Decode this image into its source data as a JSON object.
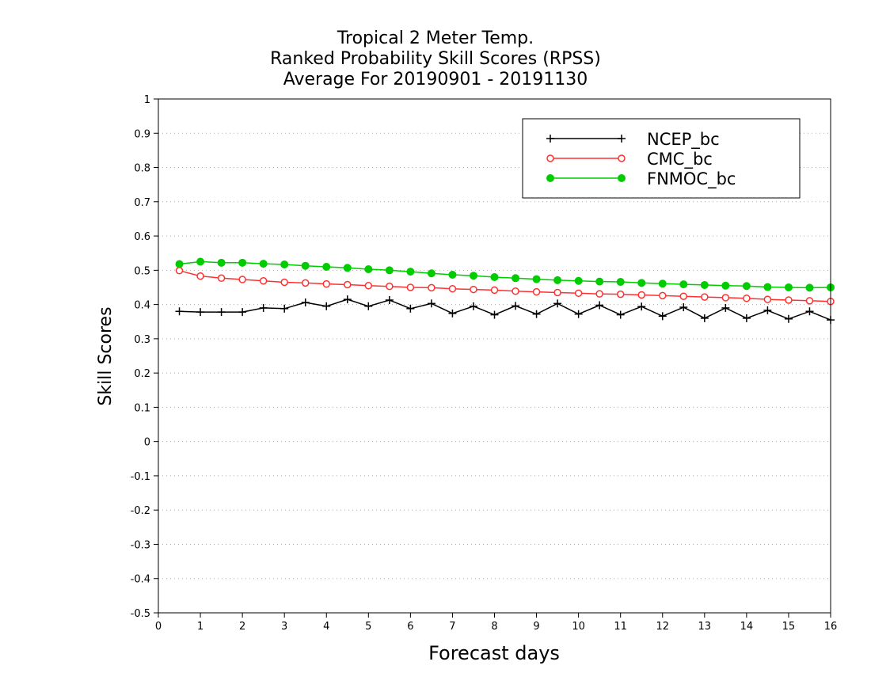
{
  "chart_data": {
    "type": "line",
    "title": [
      "Tropical 2 Meter Temp.",
      "Ranked Probability Skill Scores (RPSS)",
      "Average For 20190901 - 20191130"
    ],
    "xlabel": "Forecast days",
    "ylabel": "Skill Scores",
    "xlim": [
      0,
      16
    ],
    "ylim": [
      -0.5,
      1
    ],
    "xticks": [
      "0",
      "1",
      "2",
      "3",
      "4",
      "5",
      "6",
      "7",
      "8",
      "9",
      "10",
      "11",
      "12",
      "13",
      "14",
      "15",
      "16"
    ],
    "yticks": [
      "-0.5",
      "-0.4",
      "-0.3",
      "-0.2",
      "-0.1",
      "0",
      "0.1",
      "0.2",
      "0.3",
      "0.4",
      "0.5",
      "0.6",
      "0.7",
      "0.8",
      "0.9",
      "1"
    ],
    "grid": "horizontal dotted",
    "legend_position": "top-right",
    "x": [
      0.5,
      1,
      1.5,
      2,
      2.5,
      3,
      3.5,
      4,
      4.5,
      5,
      5.5,
      6,
      6.5,
      7,
      7.5,
      8,
      8.5,
      9,
      9.5,
      10,
      10.5,
      11,
      11.5,
      12,
      12.5,
      13,
      13.5,
      14,
      14.5,
      15,
      15.5,
      16
    ],
    "series": [
      {
        "name": "NCEP_bc",
        "color": "#000000",
        "marker": "plus",
        "values": [
          0.38,
          0.378,
          0.378,
          0.378,
          0.39,
          0.388,
          0.406,
          0.395,
          0.415,
          0.395,
          0.413,
          0.388,
          0.403,
          0.374,
          0.395,
          0.37,
          0.396,
          0.372,
          0.403,
          0.372,
          0.398,
          0.37,
          0.394,
          0.366,
          0.392,
          0.36,
          0.39,
          0.36,
          0.383,
          0.358,
          0.38,
          0.355
        ]
      },
      {
        "name": "CMC_bc",
        "color": "#ff3030",
        "marker": "open-circle",
        "values": [
          0.499,
          0.483,
          0.477,
          0.473,
          0.469,
          0.465,
          0.463,
          0.46,
          0.458,
          0.455,
          0.453,
          0.45,
          0.449,
          0.446,
          0.444,
          0.442,
          0.439,
          0.437,
          0.435,
          0.433,
          0.431,
          0.43,
          0.428,
          0.426,
          0.424,
          0.422,
          0.42,
          0.418,
          0.415,
          0.413,
          0.411,
          0.409
        ]
      },
      {
        "name": "FNMOC_bc",
        "color": "#00cc00",
        "marker": "filled-circle",
        "values": [
          0.518,
          0.525,
          0.522,
          0.522,
          0.519,
          0.517,
          0.513,
          0.51,
          0.507,
          0.503,
          0.5,
          0.496,
          0.491,
          0.487,
          0.484,
          0.48,
          0.477,
          0.474,
          0.471,
          0.469,
          0.467,
          0.466,
          0.463,
          0.461,
          0.459,
          0.457,
          0.455,
          0.454,
          0.451,
          0.45,
          0.449,
          0.45
        ]
      }
    ]
  }
}
